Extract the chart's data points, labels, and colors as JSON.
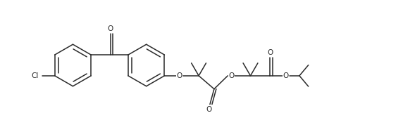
{
  "bg_color": "#ffffff",
  "line_color": "#2a2a2a",
  "lw": 1.1,
  "figsize": [
    5.72,
    1.78
  ],
  "dpi": 100,
  "xlim": [
    0.0,
    5.72
  ],
  "ylim": [
    0.0,
    1.78
  ]
}
